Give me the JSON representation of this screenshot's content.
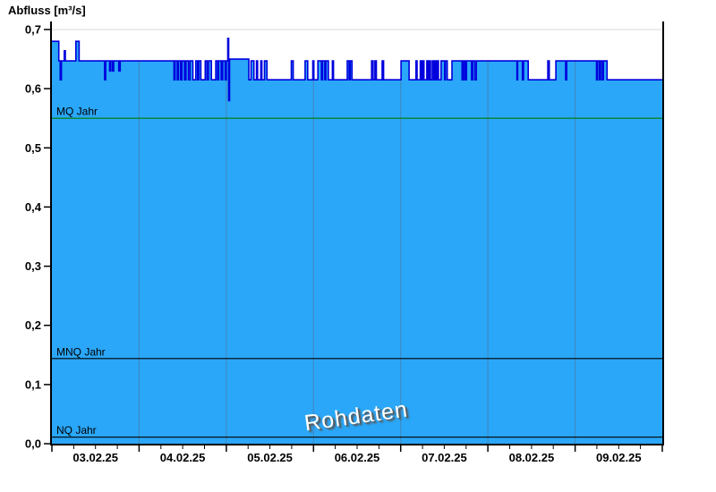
{
  "title": "Abfluss [m³/s]",
  "watermark": "Rohdaten",
  "chart_data": {
    "type": "area",
    "title": "Abfluss [m³/s]",
    "ylabel": "Abfluss [m³/s]",
    "xlabel": "",
    "ylim": [
      0,
      0.7
    ],
    "y_tick_values": [
      0,
      0.1,
      0.2,
      0.3,
      0.4,
      0.5,
      0.6,
      0.7
    ],
    "y_tick_labels": [
      "0,0",
      "0,1",
      "0,2",
      "0,3",
      "0,4",
      "0,5",
      "0,6",
      "0,7"
    ],
    "x_categories": [
      "03.02.25",
      "04.02.25",
      "05.02.25",
      "06.02.25",
      "07.02.25",
      "08.02.25",
      "09.02.25"
    ],
    "x_span_hours": 168,
    "x_minor_tick_hours": 6,
    "grid": "vertical day gridlines over fill, single light gridline at 0.7",
    "legend_position": "none",
    "reference_lines": [
      {
        "label": "MQ Jahr",
        "value": 0.55,
        "color": "#007a00"
      },
      {
        "label": "MNQ Jahr",
        "value": 0.144,
        "color": "#000000"
      },
      {
        "label": "NQ Jahr",
        "value": 0.011,
        "color": "#000000"
      }
    ],
    "colors": {
      "area_fill": "#2aa7f8",
      "line": "#0000dd",
      "day_grid_over_fill": "#4285ba",
      "top_gridline": "#d8d8d8",
      "axis": "#000000"
    },
    "series": [
      {
        "name": "Abfluss Rohdaten",
        "unit": "m³/s",
        "step": true,
        "points": [
          [
            0,
            0.68
          ],
          [
            1.9,
            0.647
          ],
          [
            2.3,
            0.615
          ],
          [
            2.6,
            0.647
          ],
          [
            3.4,
            0.664
          ],
          [
            3.7,
            0.647
          ],
          [
            6.6,
            0.68
          ],
          [
            7.5,
            0.647
          ],
          [
            14.5,
            0.615
          ],
          [
            14.8,
            0.647
          ],
          [
            15.9,
            0.63
          ],
          [
            16.2,
            0.647
          ],
          [
            16.7,
            0.63
          ],
          [
            17,
            0.647
          ],
          [
            18.4,
            0.63
          ],
          [
            18.8,
            0.647
          ],
          [
            33.6,
            0.615
          ],
          [
            33.9,
            0.647
          ],
          [
            34.5,
            0.615
          ],
          [
            34.8,
            0.647
          ],
          [
            35.4,
            0.615
          ],
          [
            35.8,
            0.647
          ],
          [
            36.5,
            0.615
          ],
          [
            36.9,
            0.647
          ],
          [
            37.6,
            0.615
          ],
          [
            38,
            0.647
          ],
          [
            38.8,
            0.615
          ],
          [
            39.6,
            0.647
          ],
          [
            40.1,
            0.615
          ],
          [
            40.4,
            0.647
          ],
          [
            41,
            0.615
          ],
          [
            42.2,
            0.647
          ],
          [
            42.7,
            0.615
          ],
          [
            43.1,
            0.647
          ],
          [
            43.9,
            0.615
          ],
          [
            45.1,
            0.647
          ],
          [
            45.6,
            0.615
          ],
          [
            45.9,
            0.647
          ],
          [
            46.6,
            0.615
          ],
          [
            47,
            0.647
          ],
          [
            47.7,
            0.615
          ],
          [
            48,
            0.647
          ],
          [
            48.4,
            0.685
          ],
          [
            48.65,
            0.58
          ],
          [
            48.9,
            0.65
          ],
          [
            54.2,
            0.615
          ],
          [
            54.8,
            0.647
          ],
          [
            55.6,
            0.615
          ],
          [
            56.3,
            0.647
          ],
          [
            56.6,
            0.615
          ],
          [
            57.5,
            0.647
          ],
          [
            57.8,
            0.615
          ],
          [
            58.5,
            0.647
          ],
          [
            59.2,
            0.615
          ],
          [
            65.9,
            0.647
          ],
          [
            66.4,
            0.615
          ],
          [
            69.7,
            0.647
          ],
          [
            70.4,
            0.615
          ],
          [
            71.8,
            0.647
          ],
          [
            72.1,
            0.615
          ],
          [
            73.2,
            0.647
          ],
          [
            74.2,
            0.615
          ],
          [
            74.5,
            0.647
          ],
          [
            75.1,
            0.615
          ],
          [
            75.4,
            0.647
          ],
          [
            76.1,
            0.615
          ],
          [
            77.2,
            0.647
          ],
          [
            77.5,
            0.615
          ],
          [
            81.3,
            0.647
          ],
          [
            81.8,
            0.615
          ],
          [
            82.1,
            0.647
          ],
          [
            82.6,
            0.615
          ],
          [
            88,
            0.647
          ],
          [
            88.4,
            0.615
          ],
          [
            88.9,
            0.647
          ],
          [
            89.3,
            0.615
          ],
          [
            90.9,
            0.647
          ],
          [
            91.3,
            0.615
          ],
          [
            96.1,
            0.647
          ],
          [
            98.3,
            0.615
          ],
          [
            100.2,
            0.647
          ],
          [
            100.5,
            0.615
          ],
          [
            101.4,
            0.647
          ],
          [
            101.7,
            0.615
          ],
          [
            102.1,
            0.647
          ],
          [
            102.4,
            0.615
          ],
          [
            103.2,
            0.647
          ],
          [
            103.5,
            0.615
          ],
          [
            103.9,
            0.647
          ],
          [
            104.2,
            0.615
          ],
          [
            104.7,
            0.647
          ],
          [
            105,
            0.615
          ],
          [
            105.4,
            0.647
          ],
          [
            105.7,
            0.615
          ],
          [
            106.1,
            0.647
          ],
          [
            106.4,
            0.615
          ],
          [
            107.1,
            0.647
          ],
          [
            108.1,
            0.615
          ],
          [
            108.3,
            0.647
          ],
          [
            108.8,
            0.615
          ],
          [
            110.1,
            0.647
          ],
          [
            112.9,
            0.615
          ],
          [
            113.3,
            0.647
          ],
          [
            113.7,
            0.615
          ],
          [
            114.1,
            0.647
          ],
          [
            115.5,
            0.615
          ],
          [
            115.8,
            0.647
          ],
          [
            116.4,
            0.615
          ],
          [
            116.8,
            0.647
          ],
          [
            128,
            0.615
          ],
          [
            128.2,
            0.647
          ],
          [
            129.5,
            0.615
          ],
          [
            129.8,
            0.647
          ],
          [
            131.1,
            0.615
          ],
          [
            136.5,
            0.647
          ],
          [
            136.9,
            0.615
          ],
          [
            138.7,
            0.647
          ],
          [
            141.4,
            0.615
          ],
          [
            141.7,
            0.647
          ],
          [
            149.9,
            0.615
          ],
          [
            150.2,
            0.647
          ],
          [
            150.7,
            0.615
          ],
          [
            151,
            0.647
          ],
          [
            151.5,
            0.615
          ],
          [
            151.8,
            0.647
          ],
          [
            152.8,
            0.615
          ]
        ]
      }
    ]
  }
}
